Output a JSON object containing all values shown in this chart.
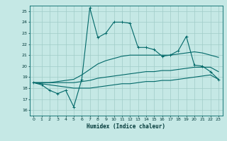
{
  "xlabel": "Humidex (Indice chaleur)",
  "xlim": [
    -0.5,
    23.5
  ],
  "ylim": [
    15.5,
    25.5
  ],
  "yticks": [
    16,
    17,
    18,
    19,
    20,
    21,
    22,
    23,
    24,
    25
  ],
  "xticks": [
    0,
    1,
    2,
    3,
    4,
    5,
    6,
    7,
    8,
    9,
    10,
    11,
    12,
    13,
    14,
    15,
    16,
    17,
    18,
    19,
    20,
    21,
    22,
    23
  ],
  "background_color": "#c5e8e5",
  "grid_color": "#a0ccc8",
  "line_color": "#006868",
  "line1_y": [
    18.5,
    18.3,
    17.8,
    17.5,
    17.8,
    16.3,
    18.8,
    25.3,
    22.6,
    23.0,
    24.0,
    24.0,
    23.9,
    21.7,
    21.7,
    21.5,
    20.9,
    21.0,
    21.4,
    22.7,
    20.1,
    20.0,
    19.5,
    18.8
  ],
  "line2_y": [
    18.5,
    18.5,
    18.5,
    18.6,
    18.7,
    18.8,
    19.2,
    19.7,
    20.2,
    20.5,
    20.7,
    20.9,
    21.0,
    21.0,
    21.0,
    21.0,
    21.0,
    21.0,
    21.1,
    21.2,
    21.3,
    21.2,
    21.0,
    20.8
  ],
  "line3_y": [
    18.5,
    18.5,
    18.5,
    18.5,
    18.5,
    18.5,
    18.6,
    18.7,
    18.9,
    19.0,
    19.1,
    19.2,
    19.3,
    19.4,
    19.5,
    19.5,
    19.6,
    19.6,
    19.7,
    19.8,
    19.9,
    19.9,
    19.9,
    19.5
  ],
  "line4_y": [
    18.5,
    18.4,
    18.3,
    18.2,
    18.1,
    18.0,
    18.0,
    18.0,
    18.1,
    18.2,
    18.3,
    18.4,
    18.4,
    18.5,
    18.6,
    18.6,
    18.7,
    18.7,
    18.8,
    18.9,
    19.0,
    19.1,
    19.2,
    18.8
  ]
}
